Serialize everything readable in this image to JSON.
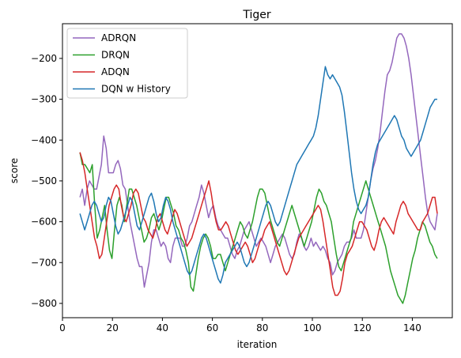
{
  "chart_data": {
    "type": "line",
    "title": "Tiger",
    "xlabel": "iteration",
    "ylabel": "score",
    "xlim": [
      0,
      156
    ],
    "ylim": [
      -835,
      -115
    ],
    "xticks": [
      0,
      20,
      40,
      60,
      80,
      100,
      120,
      140
    ],
    "yticks": [
      -800,
      -700,
      -600,
      -500,
      -400,
      -300,
      -200
    ],
    "grid": false,
    "legend": "top-left",
    "x_start": 7,
    "x_end": 150,
    "series": [
      {
        "name": "ADRQN",
        "color": "#9467bd",
        "values": [
          -540,
          -520,
          -560,
          -520,
          -500,
          -510,
          -520,
          -520,
          -490,
          -460,
          -390,
          -420,
          -480,
          -480,
          -480,
          -460,
          -450,
          -470,
          -510,
          -520,
          -560,
          -600,
          -630,
          -660,
          -690,
          -710,
          -710,
          -760,
          -730,
          -700,
          -650,
          -620,
          -620,
          -640,
          -660,
          -650,
          -660,
          -690,
          -700,
          -660,
          -640,
          -640,
          -640,
          -660,
          -660,
          -640,
          -610,
          -600,
          -580,
          -560,
          -540,
          -510,
          -530,
          -560,
          -590,
          -570,
          -560,
          -590,
          -610,
          -620,
          -630,
          -640,
          -640,
          -660,
          -680,
          -690,
          -670,
          -660,
          -640,
          -620,
          -610,
          -600,
          -620,
          -640,
          -660,
          -650,
          -640,
          -650,
          -660,
          -680,
          -700,
          -680,
          -660,
          -650,
          -640,
          -630,
          -640,
          -660,
          -680,
          -690,
          -680,
          -650,
          -630,
          -640,
          -660,
          -670,
          -660,
          -640,
          -660,
          -650,
          -660,
          -670,
          -660,
          -670,
          -690,
          -700,
          -730,
          -720,
          -700,
          -690,
          -680,
          -660,
          -650,
          -650,
          -640,
          -620,
          -640,
          -640,
          -640,
          -620,
          -580,
          -540,
          -500,
          -470,
          -450,
          -420,
          -380,
          -330,
          -280,
          -240,
          -230,
          -210,
          -180,
          -150,
          -140,
          -140,
          -150,
          -170,
          -200,
          -240,
          -290,
          -340,
          -390,
          -440,
          -490,
          -540,
          -580,
          -600,
          -610,
          -620,
          -580
        ]
      },
      {
        "name": "DRQN",
        "color": "#2ca02c",
        "values": [
          -430,
          -460,
          -460,
          -470,
          -480,
          -460,
          -560,
          -640,
          -620,
          -590,
          -560,
          -620,
          -670,
          -690,
          -620,
          -560,
          -540,
          -560,
          -600,
          -560,
          -520,
          -520,
          -540,
          -560,
          -590,
          -620,
          -650,
          -640,
          -620,
          -590,
          -580,
          -600,
          -620,
          -600,
          -570,
          -540,
          -540,
          -560,
          -580,
          -610,
          -620,
          -640,
          -650,
          -670,
          -700,
          -760,
          -770,
          -730,
          -690,
          -660,
          -640,
          -630,
          -640,
          -660,
          -690,
          -690,
          -680,
          -680,
          -700,
          -720,
          -700,
          -680,
          -660,
          -640,
          -620,
          -600,
          -610,
          -630,
          -640,
          -620,
          -600,
          -570,
          -540,
          -520,
          -520,
          -530,
          -560,
          -590,
          -610,
          -630,
          -650,
          -660,
          -640,
          -620,
          -600,
          -580,
          -560,
          -580,
          -600,
          -620,
          -640,
          -660,
          -640,
          -620,
          -600,
          -570,
          -540,
          -520,
          -530,
          -550,
          -560,
          -580,
          -600,
          -640,
          -680,
          -710,
          -720,
          -700,
          -680,
          -660,
          -640,
          -600,
          -580,
          -560,
          -540,
          -520,
          -500,
          -520,
          -540,
          -560,
          -580,
          -600,
          -620,
          -640,
          -660,
          -690,
          -720,
          -740,
          -760,
          -780,
          -790,
          -800,
          -780,
          -750,
          -720,
          -690,
          -670,
          -640,
          -620,
          -600,
          -610,
          -630,
          -650,
          -660,
          -680,
          -690
        ]
      },
      {
        "name": "ADQN",
        "color": "#d62728",
        "values": [
          -430,
          -450,
          -480,
          -520,
          -560,
          -600,
          -640,
          -660,
          -690,
          -680,
          -640,
          -600,
          -560,
          -540,
          -520,
          -510,
          -520,
          -560,
          -590,
          -600,
          -580,
          -560,
          -530,
          -520,
          -530,
          -560,
          -590,
          -600,
          -620,
          -630,
          -640,
          -620,
          -590,
          -580,
          -600,
          -620,
          -630,
          -610,
          -590,
          -570,
          -580,
          -600,
          -620,
          -640,
          -660,
          -650,
          -640,
          -620,
          -600,
          -580,
          -560,
          -540,
          -520,
          -500,
          -530,
          -570,
          -600,
          -620,
          -620,
          -610,
          -600,
          -610,
          -630,
          -650,
          -670,
          -680,
          -670,
          -660,
          -650,
          -660,
          -680,
          -700,
          -690,
          -670,
          -650,
          -640,
          -620,
          -610,
          -600,
          -620,
          -640,
          -660,
          -680,
          -700,
          -720,
          -730,
          -720,
          -700,
          -680,
          -660,
          -640,
          -630,
          -620,
          -610,
          -600,
          -590,
          -580,
          -570,
          -560,
          -570,
          -600,
          -640,
          -680,
          -720,
          -760,
          -780,
          -780,
          -770,
          -740,
          -700,
          -680,
          -670,
          -660,
          -640,
          -620,
          -600,
          -600,
          -610,
          -620,
          -640,
          -660,
          -670,
          -650,
          -620,
          -600,
          -590,
          -600,
          -610,
          -620,
          -630,
          -600,
          -580,
          -560,
          -550,
          -560,
          -580,
          -590,
          -600,
          -610,
          -620,
          -620,
          -600,
          -590,
          -580,
          -560,
          -540,
          -540,
          -580
        ]
      },
      {
        "name": "DQN w History",
        "color": "#1f77b4",
        "values": [
          -580,
          -600,
          -620,
          -600,
          -580,
          -560,
          -550,
          -560,
          -580,
          -600,
          -590,
          -560,
          -540,
          -550,
          -580,
          -610,
          -630,
          -620,
          -600,
          -580,
          -560,
          -540,
          -550,
          -580,
          -610,
          -620,
          -600,
          -580,
          -560,
          -540,
          -530,
          -550,
          -580,
          -600,
          -590,
          -560,
          -540,
          -550,
          -570,
          -600,
          -620,
          -640,
          -660,
          -680,
          -700,
          -720,
          -730,
          -720,
          -700,
          -680,
          -660,
          -640,
          -630,
          -640,
          -660,
          -680,
          -700,
          -720,
          -740,
          -750,
          -730,
          -700,
          -690,
          -680,
          -670,
          -660,
          -650,
          -660,
          -680,
          -700,
          -710,
          -700,
          -680,
          -660,
          -640,
          -620,
          -600,
          -580,
          -560,
          -550,
          -560,
          -580,
          -600,
          -610,
          -600,
          -580,
          -560,
          -540,
          -520,
          -500,
          -480,
          -460,
          -450,
          -440,
          -430,
          -420,
          -410,
          -400,
          -390,
          -370,
          -340,
          -300,
          -260,
          -220,
          -240,
          -250,
          -240,
          -250,
          -260,
          -270,
          -290,
          -330,
          -380,
          -430,
          -480,
          -520,
          -550,
          -570,
          -580,
          -570,
          -560,
          -540,
          -500,
          -460,
          -430,
          -410,
          -400,
          -390,
          -380,
          -370,
          -360,
          -350,
          -340,
          -350,
          -370,
          -390,
          -400,
          -420,
          -430,
          -440,
          -430,
          -420,
          -410,
          -400,
          -380,
          -360,
          -340,
          -320,
          -310,
          -300,
          -300
        ]
      }
    ]
  }
}
